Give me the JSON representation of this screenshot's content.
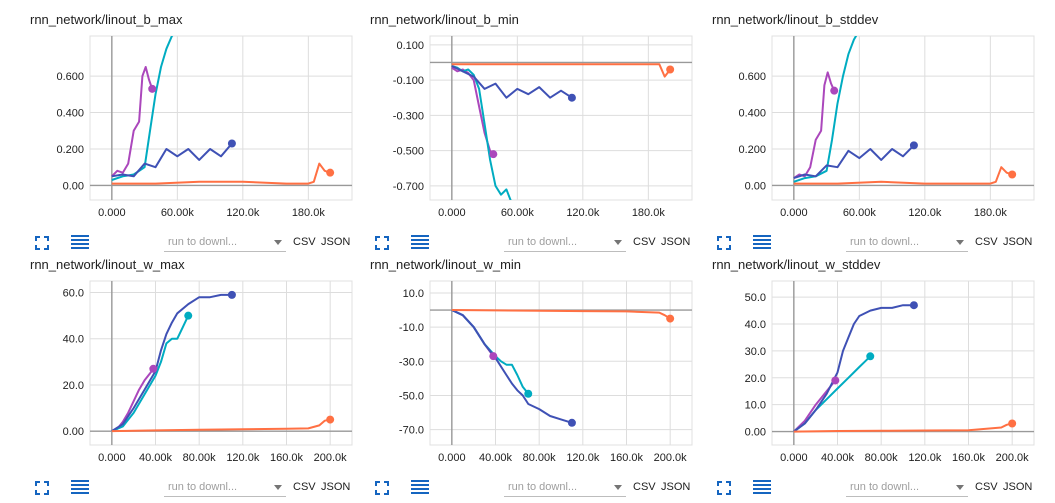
{
  "controls": {
    "run_select": "run to downl...",
    "csv": "CSV",
    "json": "JSON"
  },
  "colors": {
    "grid": "#dddddd",
    "axis": "#999999",
    "purple": "#ab47bc",
    "teal": "#00acc1",
    "blue": "#3f51b5",
    "orange": "#ff7043"
  },
  "chart_data": [
    {
      "type": "line",
      "title": "rnn_network/linout_b_max",
      "xlim": [
        -20000,
        220000
      ],
      "ylim": [
        -0.08,
        0.82
      ],
      "xticks": [
        0,
        60000,
        120000,
        180000
      ],
      "xtick_labels": [
        "0.000",
        "60.00k",
        "120.0k",
        "180.0k"
      ],
      "yticks": [
        0,
        0.2,
        0.4,
        0.6
      ],
      "ytick_labels": [
        "0.00",
        "0.200",
        "0.400",
        "0.600"
      ],
      "series": [
        {
          "color": "#ab47bc",
          "x": [
            0,
            5000,
            10000,
            15000,
            20000,
            25000,
            28000,
            31000,
            34000,
            37000
          ],
          "y": [
            0.05,
            0.08,
            0.07,
            0.12,
            0.3,
            0.35,
            0.6,
            0.65,
            0.58,
            0.53
          ]
        },
        {
          "color": "#00acc1",
          "x": [
            0,
            10000,
            20000,
            30000,
            35000,
            40000,
            45000,
            50000,
            55000,
            60000,
            64000
          ],
          "y": [
            0.03,
            0.05,
            0.06,
            0.1,
            0.3,
            0.5,
            0.65,
            0.75,
            0.82,
            0.85,
            0.9
          ]
        },
        {
          "color": "#3f51b5",
          "x": [
            0,
            10000,
            20000,
            30000,
            40000,
            50000,
            60000,
            70000,
            80000,
            90000,
            100000,
            110000
          ],
          "y": [
            0.05,
            0.06,
            0.05,
            0.12,
            0.1,
            0.2,
            0.16,
            0.2,
            0.14,
            0.2,
            0.16,
            0.23
          ]
        },
        {
          "color": "#ff7043",
          "x": [
            0,
            40000,
            80000,
            120000,
            160000,
            180000,
            185000,
            190000,
            195000,
            200000
          ],
          "y": [
            0.01,
            0.01,
            0.02,
            0.02,
            0.01,
            0.01,
            0.02,
            0.12,
            0.08,
            0.07
          ]
        }
      ]
    },
    {
      "type": "line",
      "title": "rnn_network/linout_b_min",
      "xlim": [
        -20000,
        220000
      ],
      "ylim": [
        -0.78,
        0.15
      ],
      "xticks": [
        0,
        60000,
        120000,
        180000
      ],
      "xtick_labels": [
        "0.000",
        "60.00k",
        "120.0k",
        "180.0k"
      ],
      "yticks": [
        0.1,
        -0.1,
        -0.3,
        -0.5,
        -0.7
      ],
      "ytick_labels": [
        "0.100",
        "-0.100",
        "-0.300",
        "-0.500",
        "-0.700"
      ],
      "series": [
        {
          "color": "#ab47bc",
          "x": [
            0,
            5000,
            10000,
            15000,
            20000,
            25000,
            30000,
            35000,
            38000
          ],
          "y": [
            -0.03,
            -0.05,
            -0.04,
            -0.06,
            -0.1,
            -0.25,
            -0.4,
            -0.5,
            -0.52
          ]
        },
        {
          "color": "#00acc1",
          "x": [
            0,
            5000,
            10000,
            15000,
            20000,
            25000,
            30000,
            35000,
            40000,
            45000,
            50000,
            55000,
            60000
          ],
          "y": [
            -0.02,
            -0.03,
            -0.05,
            -0.04,
            -0.07,
            -0.15,
            -0.35,
            -0.55,
            -0.7,
            -0.75,
            -0.72,
            -0.8,
            -0.9
          ]
        },
        {
          "color": "#3f51b5",
          "x": [
            0,
            10000,
            20000,
            30000,
            40000,
            50000,
            60000,
            70000,
            80000,
            90000,
            100000,
            110000
          ],
          "y": [
            -0.02,
            -0.05,
            -0.08,
            -0.15,
            -0.12,
            -0.2,
            -0.15,
            -0.18,
            -0.14,
            -0.2,
            -0.16,
            -0.2
          ]
        },
        {
          "color": "#ff7043",
          "x": [
            0,
            40000,
            80000,
            120000,
            160000,
            190000,
            195000,
            200000
          ],
          "y": [
            -0.01,
            -0.01,
            -0.01,
            -0.01,
            -0.01,
            -0.01,
            -0.08,
            -0.04
          ]
        }
      ]
    },
    {
      "type": "line",
      "title": "rnn_network/linout_b_stddev",
      "xlim": [
        -20000,
        220000
      ],
      "ylim": [
        -0.08,
        0.82
      ],
      "xticks": [
        0,
        60000,
        120000,
        180000
      ],
      "xtick_labels": [
        "0.000",
        "60.00k",
        "120.0k",
        "180.0k"
      ],
      "yticks": [
        0,
        0.2,
        0.4,
        0.6
      ],
      "ytick_labels": [
        "0.00",
        "0.200",
        "0.400",
        "0.600"
      ],
      "series": [
        {
          "color": "#ab47bc",
          "x": [
            0,
            5000,
            10000,
            15000,
            20000,
            25000,
            28000,
            31000,
            34000,
            37000
          ],
          "y": [
            0.04,
            0.06,
            0.05,
            0.1,
            0.25,
            0.3,
            0.55,
            0.62,
            0.56,
            0.52
          ]
        },
        {
          "color": "#00acc1",
          "x": [
            0,
            10000,
            20000,
            30000,
            35000,
            40000,
            45000,
            50000,
            55000,
            60000,
            64000
          ],
          "y": [
            0.02,
            0.04,
            0.05,
            0.08,
            0.25,
            0.45,
            0.6,
            0.72,
            0.8,
            0.85,
            0.9
          ]
        },
        {
          "color": "#3f51b5",
          "x": [
            0,
            10000,
            20000,
            30000,
            40000,
            50000,
            60000,
            70000,
            80000,
            90000,
            100000,
            110000
          ],
          "y": [
            0.04,
            0.06,
            0.05,
            0.11,
            0.1,
            0.19,
            0.15,
            0.2,
            0.14,
            0.2,
            0.16,
            0.22
          ]
        },
        {
          "color": "#ff7043",
          "x": [
            0,
            40000,
            80000,
            120000,
            160000,
            180000,
            185000,
            190000,
            195000,
            200000
          ],
          "y": [
            0.01,
            0.01,
            0.02,
            0.01,
            0.01,
            0.01,
            0.02,
            0.1,
            0.07,
            0.06
          ]
        }
      ]
    },
    {
      "type": "line",
      "title": "rnn_network/linout_w_max",
      "xlim": [
        -20000,
        220000
      ],
      "ylim": [
        -6,
        65
      ],
      "xticks": [
        0,
        40000,
        80000,
        120000,
        160000,
        200000
      ],
      "xtick_labels": [
        "0.000",
        "40.00k",
        "80.00k",
        "120.0k",
        "160.0k",
        "200.0k"
      ],
      "yticks": [
        0,
        20,
        40,
        60
      ],
      "ytick_labels": [
        "0.00",
        "20.0",
        "40.0",
        "60.0"
      ],
      "series": [
        {
          "color": "#ab47bc",
          "x": [
            0,
            5000,
            10000,
            15000,
            20000,
            25000,
            30000,
            35000,
            38000
          ],
          "y": [
            0,
            1,
            4,
            8,
            13,
            18,
            22,
            25,
            27
          ]
        },
        {
          "color": "#00acc1",
          "x": [
            0,
            10000,
            20000,
            30000,
            40000,
            45000,
            50000,
            55000,
            60000,
            65000,
            70000
          ],
          "y": [
            0,
            2,
            8,
            16,
            24,
            30,
            38,
            40,
            40,
            45,
            50
          ]
        },
        {
          "color": "#3f51b5",
          "x": [
            0,
            10000,
            20000,
            30000,
            40000,
            45000,
            50000,
            55000,
            60000,
            70000,
            80000,
            90000,
            100000,
            110000
          ],
          "y": [
            0,
            3,
            10,
            18,
            26,
            35,
            42,
            47,
            51,
            55,
            58,
            58,
            59,
            59
          ]
        },
        {
          "color": "#ff7043",
          "x": [
            0,
            40000,
            80000,
            120000,
            160000,
            180000,
            190000,
            195000,
            200000
          ],
          "y": [
            0,
            0.3,
            0.6,
            0.8,
            1,
            1.2,
            2.5,
            4.5,
            5
          ]
        }
      ]
    },
    {
      "type": "line",
      "title": "rnn_network/linout_w_min",
      "xlim": [
        -20000,
        220000
      ],
      "ylim": [
        -79,
        17
      ],
      "xticks": [
        0,
        40000,
        80000,
        120000,
        160000,
        200000
      ],
      "xtick_labels": [
        "0.000",
        "40.00k",
        "80.00k",
        "120.0k",
        "160.0k",
        "200.0k"
      ],
      "yticks": [
        10,
        -10,
        -30,
        -50,
        -70
      ],
      "ytick_labels": [
        "10.0",
        "-10.0",
        "-30.0",
        "-50.0",
        "-70.0"
      ],
      "series": [
        {
          "color": "#ab47bc",
          "x": [
            0,
            10000,
            20000,
            30000,
            38000
          ],
          "y": [
            0,
            -3,
            -10,
            -20,
            -27
          ]
        },
        {
          "color": "#00acc1",
          "x": [
            0,
            10000,
            20000,
            30000,
            40000,
            45000,
            50000,
            55000,
            60000,
            65000,
            70000
          ],
          "y": [
            0,
            -3,
            -10,
            -20,
            -27,
            -30,
            -32,
            -32,
            -38,
            -45,
            -49
          ]
        },
        {
          "color": "#3f51b5",
          "x": [
            0,
            10000,
            20000,
            30000,
            40000,
            50000,
            55000,
            60000,
            65000,
            70000,
            80000,
            90000,
            100000,
            110000
          ],
          "y": [
            0,
            -3,
            -10,
            -20,
            -28,
            -38,
            -43,
            -47,
            -50,
            -55,
            -58,
            -62,
            -64,
            -66
          ]
        },
        {
          "color": "#ff7043",
          "x": [
            0,
            40000,
            80000,
            120000,
            160000,
            190000,
            195000,
            200000
          ],
          "y": [
            0,
            -0.2,
            -0.4,
            -0.6,
            -0.8,
            -1.5,
            -3,
            -5
          ]
        }
      ]
    },
    {
      "type": "line",
      "title": "rnn_network/linout_w_stddev",
      "xlim": [
        -20000,
        220000
      ],
      "ylim": [
        -5,
        56
      ],
      "xticks": [
        0,
        40000,
        80000,
        120000,
        160000,
        200000
      ],
      "xtick_labels": [
        "0.000",
        "40.00k",
        "80.00k",
        "120.0k",
        "160.0k",
        "200.0k"
      ],
      "yticks": [
        0,
        10,
        20,
        30,
        40,
        50
      ],
      "ytick_labels": [
        "0.00",
        "10.0",
        "20.0",
        "30.0",
        "40.0",
        "50.0"
      ],
      "series": [
        {
          "color": "#ab47bc",
          "x": [
            0,
            10000,
            20000,
            30000,
            38000
          ],
          "y": [
            0,
            4,
            10,
            15,
            19
          ]
        },
        {
          "color": "#00acc1",
          "x": [
            0,
            10000,
            20000,
            30000,
            40000,
            50000,
            55000,
            60000,
            65000,
            70000
          ],
          "y": [
            0,
            3,
            8,
            12,
            16,
            20,
            22,
            24,
            26,
            28
          ]
        },
        {
          "color": "#3f51b5",
          "x": [
            0,
            10000,
            20000,
            30000,
            40000,
            45000,
            50000,
            55000,
            60000,
            70000,
            80000,
            90000,
            100000,
            110000
          ],
          "y": [
            0,
            3,
            8,
            14,
            22,
            30,
            35,
            40,
            43,
            45,
            46,
            46,
            47,
            47
          ]
        },
        {
          "color": "#ff7043",
          "x": [
            0,
            40000,
            80000,
            120000,
            160000,
            190000,
            195000,
            200000
          ],
          "y": [
            0,
            0.2,
            0.3,
            0.4,
            0.5,
            1.5,
            2.5,
            3
          ]
        }
      ]
    }
  ]
}
